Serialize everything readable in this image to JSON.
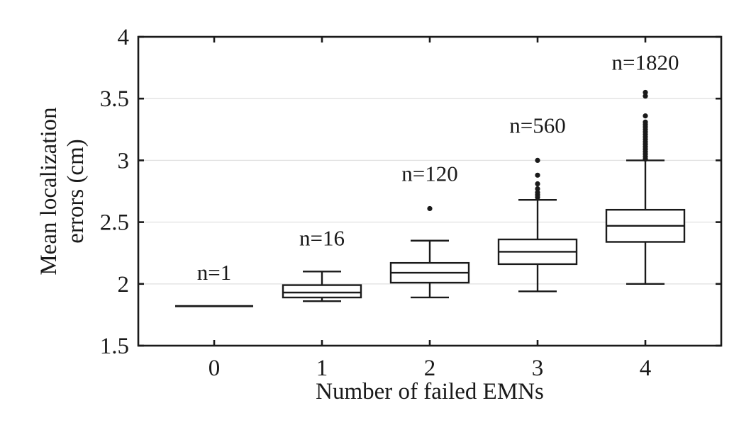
{
  "chart_data": {
    "type": "boxplot",
    "title": "",
    "xlabel": "Number of failed EMNs",
    "ylabel_lines": [
      "Mean localization",
      "errors (cm)"
    ],
    "categories": [
      "0",
      "1",
      "2",
      "3",
      "4"
    ],
    "ylim": [
      1.5,
      4
    ],
    "y_ticks": [
      {
        "value": 4,
        "label": "4"
      },
      {
        "value": 3.5,
        "label": "3.5"
      },
      {
        "value": 3,
        "label": "3"
      },
      {
        "value": 2.5,
        "label": "2.5"
      },
      {
        "value": 2,
        "label": "2"
      },
      {
        "value": 1.5,
        "label": "1.5"
      }
    ],
    "gridlines_y": [
      2,
      2.5,
      3,
      3.5
    ],
    "grid": true,
    "legend_position": "none",
    "boxes": [
      {
        "category": "0",
        "n": 1,
        "n_label": "n=1",
        "n_label_y": 2.09,
        "degenerate": true,
        "median": 1.82,
        "q1": 1.82,
        "q3": 1.82,
        "whisker_low": 1.82,
        "whisker_high": 1.82,
        "outliers": []
      },
      {
        "category": "1",
        "n": 16,
        "n_label": "n=16",
        "n_label_y": 2.37,
        "degenerate": false,
        "median": 1.93,
        "q1": 1.89,
        "q3": 1.99,
        "whisker_low": 1.86,
        "whisker_high": 2.1,
        "outliers": []
      },
      {
        "category": "2",
        "n": 120,
        "n_label": "n=120",
        "n_label_y": 2.89,
        "degenerate": false,
        "median": 2.09,
        "q1": 2.01,
        "q3": 2.17,
        "whisker_low": 1.89,
        "whisker_high": 2.35,
        "outliers": [
          2.61
        ]
      },
      {
        "category": "3",
        "n": 560,
        "n_label": "n=560",
        "n_label_y": 3.28,
        "degenerate": false,
        "median": 2.26,
        "q1": 2.16,
        "q3": 2.36,
        "whisker_low": 1.94,
        "whisker_high": 2.68,
        "outliers": [
          2.7,
          2.72,
          2.74,
          2.77,
          2.81,
          2.88,
          3.0
        ]
      },
      {
        "category": "4",
        "n": 1820,
        "n_label": "n=1820",
        "n_label_y": 3.79,
        "degenerate": false,
        "median": 2.47,
        "q1": 2.34,
        "q3": 2.6,
        "whisker_low": 2.0,
        "whisker_high": 3.0,
        "outliers": [
          3.01,
          3.03,
          3.05,
          3.07,
          3.09,
          3.11,
          3.13,
          3.15,
          3.17,
          3.19,
          3.21,
          3.23,
          3.25,
          3.27,
          3.29,
          3.31,
          3.36,
          3.52,
          3.55
        ]
      }
    ],
    "colors": {
      "line": "#1a1a1a",
      "grid": "#e2e2e2",
      "box_fill": "#ffffff",
      "background": "#ffffff"
    }
  }
}
